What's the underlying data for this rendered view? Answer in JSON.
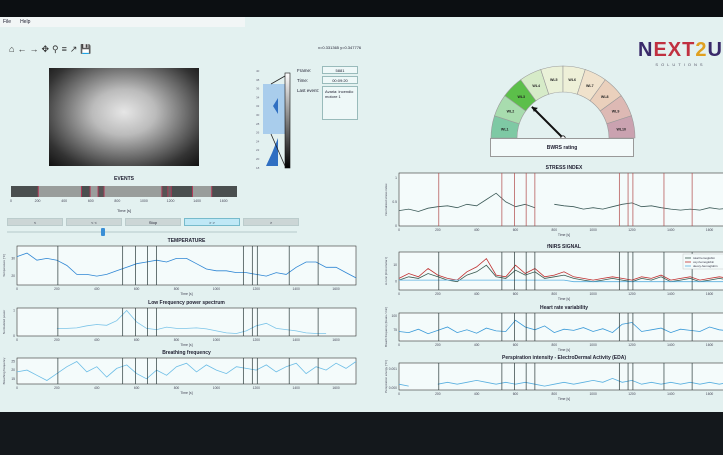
{
  "menu": {
    "file": "File",
    "help": "Help"
  },
  "toolbar": {
    "icons": [
      "home-icon",
      "back-arrow-icon",
      "forward-arrow-icon",
      "pan-icon",
      "zoom-icon",
      "configure-subplots-icon",
      "edit-axes-icon",
      "save-icon"
    ],
    "glyphs": "⌂ ← → ✥ ⚲ ≡ ↗ 💾"
  },
  "coords": "x=0.331365    y=0.347776",
  "histogram": {
    "ticks": [
      "40",
      "38",
      "36",
      "34",
      "32",
      "30",
      "28",
      "26",
      "24",
      "22",
      "20",
      "18"
    ]
  },
  "info": {
    "frame_label": "Frame:",
    "frame_value": "5881",
    "time_label": "Time:",
    "time_value": "00:09:20",
    "last_event_label": "Last event:",
    "last_event_value": "Avaria: incendio motore 1"
  },
  "gauge": {
    "labels": [
      "WL1",
      "WL2",
      "WL3",
      "WL4",
      "WL5",
      "WL6",
      "WL7",
      "WL8",
      "WL9",
      "WL10"
    ],
    "value": 3,
    "colors": [
      "#7ec9a4",
      "#a8dcae",
      "#5cbf4a",
      "#d6ebc8",
      "#eaf1d8",
      "#eef0d8",
      "#f0e2cc",
      "#ead0bc",
      "#ddb9b4",
      "#caa2b0"
    ],
    "title": "BWRS rating"
  },
  "logo": {
    "text": "NEXT2U",
    "sub": "SOLUTIONS"
  },
  "events_panel": {
    "title": "EVENTS",
    "xlabel": "Time [s]",
    "ticks": [
      "0",
      "200",
      "400",
      "600",
      "800",
      "1000",
      "1200",
      "1400",
      "1600"
    ],
    "times": [
      205,
      530,
      595,
      655,
      700,
      1135,
      1180,
      1205,
      1365,
      1510
    ],
    "segment_colors": [
      "#4a4f4f",
      "#999d9b",
      "#4a4f4f",
      "#9a9e9c",
      "#555",
      "#999d9b",
      "#555",
      "#666",
      "#4a4f4f",
      "#999d9b",
      "#4a4f4f"
    ]
  },
  "controls": {
    "buttons": [
      "<",
      "< <",
      "Stop",
      "> >",
      ">"
    ],
    "active": 3,
    "slider_value": 0.33
  },
  "charts": {
    "x": [
      0,
      50,
      100,
      150,
      200,
      250,
      300,
      350,
      400,
      450,
      500,
      550,
      600,
      650,
      700,
      750,
      800,
      850,
      900,
      950,
      1000,
      1050,
      1100,
      1150,
      1200,
      1250,
      1300,
      1350,
      1400,
      1450,
      1500,
      1550,
      1600,
      1650,
      1700
    ],
    "temperature": {
      "title": "TEMPERATURE",
      "ylabel": "Temperature [°C]",
      "xlabel": "Time [s]",
      "ylim": [
        15,
        37
      ],
      "yticks": [
        20,
        30
      ],
      "series": [
        {
          "color": "#2e86d4",
          "values": [
            31,
            33,
            29,
            30,
            29,
            26,
            21,
            21,
            20,
            21,
            23,
            25,
            27,
            28,
            29,
            28,
            30,
            30,
            27,
            24,
            23,
            23,
            22,
            22,
            21,
            20,
            22,
            21,
            25,
            28,
            28,
            25,
            25,
            22,
            19
          ]
        }
      ]
    },
    "lf": {
      "title": "Low Frequency power spectrum",
      "ylabel": "Normalized power",
      "xlabel": "Time [s]",
      "ylim": [
        0,
        1.1
      ],
      "yticks": [
        0,
        1
      ],
      "series": [
        {
          "color": "#7cc4e8",
          "values": [
            null,
            null,
            null,
            null,
            0.3,
            0.3,
            0.32,
            0.4,
            0.45,
            0.42,
            0.6,
            1.0,
            0.55,
            0.3,
            0.25,
            0.35,
            0.3,
            0.3,
            0.32,
            0.28,
            0.2,
            0.12,
            0.1,
            0.2,
            0.4,
            0.5,
            0.3,
            0.25,
            0.2,
            0.12,
            0.1,
            0.1,
            null,
            null,
            null
          ]
        }
      ]
    },
    "breathing": {
      "title": "Breathing frequency",
      "ylabel": "Breathing frequency",
      "xlabel": "Time [s]",
      "ylim": [
        12,
        27
      ],
      "yticks": [
        15,
        20,
        25
      ],
      "series": [
        {
          "color": "#6cbde6",
          "values": [
            19,
            20,
            17,
            14,
            18,
            22,
            25,
            19,
            22,
            16,
            21,
            23,
            18,
            15,
            20,
            17,
            22,
            24,
            19,
            23,
            20,
            18,
            22,
            21,
            20,
            23,
            19,
            22,
            24,
            18,
            22,
            20,
            24,
            21,
            25
          ]
        }
      ]
    },
    "stress": {
      "title": "STRESS INDEX",
      "ylabel": "Normalized stress index",
      "xlabel": "Time [s]",
      "ylim": [
        0,
        1.1
      ],
      "yticks": [
        0,
        0.5,
        1.0
      ],
      "event_color": "#b04848",
      "series": [
        {
          "color": "#3c5a58",
          "values": [
            0.32,
            0.35,
            0.3,
            0.37,
            0.4,
            0.42,
            0.38,
            0.45,
            0.42,
            0.55,
            0.68,
            0.5,
            0.4,
            0.45,
            0.38,
            null,
            0.45,
            0.42,
            0.4,
            0.35,
            0.38,
            0.35,
            0.4,
            0.45,
            0.48,
            0.4,
            0.42,
            0.38,
            0.35,
            0.33,
            0.35,
            0.33,
            0.38,
            0.35,
            0.37
          ]
        }
      ]
    },
    "nirs": {
      "title": "fNIRS SIGNAL",
      "ylabel": "Δ conc [micromolar·l]",
      "xlabel": "Time [s]",
      "ylim": [
        -5,
        18
      ],
      "yticks": [
        0,
        10
      ],
      "legend": [
        "total hemoglobin",
        "oxy-hemoglobin",
        "deoxy-hemoglobin"
      ],
      "series": [
        {
          "name": "total hemoglobin",
          "color": "#3a5a50",
          "values": [
            1,
            3,
            2,
            5,
            3,
            1,
            0,
            4,
            6,
            10,
            3,
            2,
            7,
            4,
            6,
            2,
            3,
            4,
            2,
            1,
            0,
            1,
            2,
            1,
            0,
            2,
            1,
            3,
            0,
            1,
            2,
            0,
            1,
            2,
            1
          ]
        },
        {
          "name": "oxy-hemoglobin",
          "color": "#c03030",
          "values": [
            2,
            5,
            3,
            8,
            4,
            2,
            1,
            6,
            9,
            14,
            4,
            3,
            10,
            5,
            8,
            3,
            4,
            6,
            3,
            2,
            1,
            2,
            3,
            2,
            1,
            3,
            2,
            4,
            1,
            2,
            3,
            1,
            2,
            3,
            2
          ]
        },
        {
          "name": "deoxy-hemoglobin",
          "color": "#5ab0e0",
          "values": [
            1,
            1,
            1,
            1,
            1,
            1,
            1,
            1,
            1,
            1,
            1,
            1,
            1,
            1,
            1,
            1,
            1,
            1,
            0,
            0,
            0,
            0,
            0,
            0,
            0,
            0,
            0,
            0,
            0,
            0,
            0,
            0,
            0,
            0,
            0
          ]
        }
      ]
    },
    "hrv": {
      "title": "Heart rate variability",
      "ylabel": "Breath frequency [beats / min]",
      "xlabel": "Time [s]",
      "ylim": [
        55,
        105
      ],
      "yticks": [
        75,
        100
      ],
      "series": [
        {
          "color": "#3a9ad8",
          "values": [
            72,
            70,
            76,
            68,
            74,
            80,
            70,
            75,
            69,
            78,
            73,
            72,
            92,
            80,
            75,
            82,
            70,
            76,
            74,
            79,
            72,
            77,
            70,
            85,
            88,
            72,
            75,
            78,
            70,
            76,
            74,
            72,
            80,
            75,
            73
          ]
        }
      ]
    },
    "eda": {
      "title": "Perspiration intensity - ElectroDermal Activity (EDA)",
      "ylabel": "Perspiration energy [°C²]",
      "xlabel": "Time [s]",
      "ylim": [
        -0.0001,
        0.0013
      ],
      "yticks": [
        0.0,
        0.001
      ],
      "ytick_labels": [
        "0.000",
        "0.001"
      ],
      "series": [
        {
          "color": "#5ab0e0",
          "values": [
            0.0002,
            0.0001,
            null,
            null,
            0.0002,
            0.0003,
            0.0002,
            0.0003,
            0.0004,
            0.0003,
            0.0002,
            0.0003,
            0.0002,
            0.0003,
            0.0002,
            0.0001,
            0.0002,
            0.0003,
            0.0002,
            0.0003,
            0.0004,
            0.0003,
            0.0005,
            0.0003,
            0.0004,
            0.0002,
            0.0003,
            0.0002,
            0.0003,
            0.0002,
            0.0003,
            0.0002,
            0.0003,
            0.0002,
            0.0003
          ]
        }
      ]
    }
  }
}
